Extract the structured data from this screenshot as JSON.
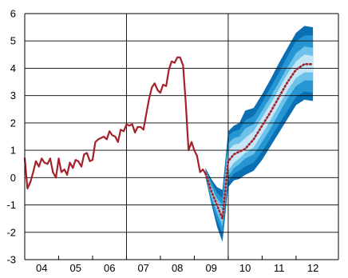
{
  "chart_data": {
    "type": "line",
    "title": "",
    "xlabel": "",
    "ylabel": "",
    "ylim": [
      -3,
      6
    ],
    "yticks": [
      -3,
      -2,
      -1,
      0,
      1,
      2,
      3,
      4,
      5,
      6
    ],
    "ytick_labels": [
      "-3",
      "-2",
      "-1",
      "0",
      "1",
      "2",
      "3",
      "4",
      "5",
      "6"
    ],
    "xlim": [
      2003.5,
      2012.75
    ],
    "xtick_labels": [
      "04",
      "05",
      "06",
      "07",
      "08",
      "09",
      "10",
      "11",
      "12"
    ],
    "xtick_positions": [
      2004,
      2005,
      2006,
      2007,
      2008,
      2009,
      2010,
      2011,
      2012
    ],
    "vertical_lines": [
      2006.5,
      2009.5
    ],
    "grid": "horizontal",
    "colors": {
      "history": "#a3212a",
      "projection": "#a3212a",
      "fan_bands": [
        "#0b6fb4",
        "#2596d2",
        "#6cc2ea",
        "#c4e6f6"
      ]
    },
    "series": [
      {
        "kind": "history",
        "x": [
          2003.5,
          2003.58,
          2003.67,
          2003.75,
          2003.83,
          2003.92,
          2004.0,
          2004.08,
          2004.17,
          2004.25,
          2004.33,
          2004.42,
          2004.5,
          2004.58,
          2004.67,
          2004.75,
          2004.83,
          2004.92,
          2005.0,
          2005.08,
          2005.17,
          2005.25,
          2005.33,
          2005.42,
          2005.5,
          2005.58,
          2005.67,
          2005.75,
          2005.83,
          2005.92,
          2006.0,
          2006.08,
          2006.17,
          2006.25,
          2006.33,
          2006.42,
          2006.5,
          2006.58,
          2006.67,
          2006.75,
          2006.83,
          2006.92,
          2007.0,
          2007.08,
          2007.17,
          2007.25,
          2007.33,
          2007.42,
          2007.5,
          2007.58,
          2007.67,
          2007.75,
          2007.83,
          2007.92,
          2008.0,
          2008.08,
          2008.17,
          2008.25,
          2008.33,
          2008.42,
          2008.5,
          2008.58,
          2008.67,
          2008.75,
          2008.83
        ],
        "y": [
          0.7,
          -0.4,
          -0.15,
          0.2,
          0.6,
          0.4,
          0.7,
          0.55,
          0.5,
          0.7,
          0.2,
          0.0,
          0.7,
          0.2,
          0.3,
          0.1,
          0.55,
          0.35,
          0.65,
          0.6,
          0.4,
          0.85,
          0.9,
          0.6,
          0.65,
          1.3,
          1.4,
          1.45,
          1.5,
          1.4,
          1.7,
          1.55,
          1.5,
          1.3,
          1.75,
          1.7,
          1.95,
          1.9,
          1.95,
          1.65,
          1.85,
          1.85,
          1.75,
          2.3,
          2.9,
          3.3,
          3.45,
          3.2,
          3.1,
          3.4,
          3.35,
          3.95,
          4.25,
          4.2,
          4.4,
          4.4,
          4.1,
          2.7,
          1.0,
          1.3,
          1.0,
          0.8,
          0.2,
          0.3,
          0.15
        ]
      },
      {
        "kind": "projection",
        "x": [
          2008.83,
          2009.0,
          2009.17,
          2009.33,
          2009.5,
          2009.67,
          2009.83,
          2010.0,
          2010.25,
          2010.5,
          2010.75,
          2011.0,
          2011.25,
          2011.5,
          2011.75,
          2012.0
        ],
        "y": [
          0.15,
          -0.5,
          -1.0,
          -1.5,
          0.6,
          0.85,
          0.95,
          1.05,
          1.4,
          1.9,
          2.4,
          2.95,
          3.5,
          3.95,
          4.15,
          4.15
        ]
      }
    ],
    "fan": {
      "x": [
        2008.83,
        2009.0,
        2009.17,
        2009.33,
        2009.5,
        2009.67,
        2009.83,
        2010.0,
        2010.25,
        2010.5,
        2010.75,
        2011.0,
        2011.25,
        2011.5,
        2011.75,
        2012.0
      ],
      "bands": [
        {
          "upper": [
            0.35,
            -0.05,
            -0.35,
            -0.45,
            1.7,
            1.9,
            2.0,
            2.45,
            2.55,
            3.05,
            3.6,
            4.2,
            4.75,
            5.3,
            5.55,
            5.5
          ],
          "lower": [
            0.0,
            -0.95,
            -1.8,
            -2.35,
            -0.35,
            -0.1,
            -0.05,
            0.1,
            0.25,
            0.65,
            1.15,
            1.65,
            2.15,
            2.65,
            2.85,
            2.8
          ]
        },
        {
          "upper": [
            0.3,
            -0.15,
            -0.55,
            -0.75,
            1.55,
            1.7,
            1.75,
            2.1,
            2.25,
            2.75,
            3.3,
            3.85,
            4.45,
            5.0,
            5.2,
            5.2
          ],
          "lower": [
            0.05,
            -0.85,
            -1.55,
            -2.05,
            -0.15,
            0.15,
            0.25,
            0.4,
            0.55,
            0.95,
            1.45,
            1.95,
            2.45,
            2.95,
            3.15,
            3.1
          ]
        },
        {
          "upper": [
            0.25,
            -0.3,
            -0.75,
            -1.0,
            1.25,
            1.45,
            1.5,
            1.8,
            1.95,
            2.45,
            2.95,
            3.5,
            4.05,
            4.55,
            4.8,
            4.75
          ],
          "lower": [
            0.1,
            -0.7,
            -1.3,
            -1.8,
            0.05,
            0.35,
            0.5,
            0.7,
            0.85,
            1.3,
            1.8,
            2.35,
            2.9,
            3.35,
            3.55,
            3.55
          ]
        },
        {
          "upper": [
            0.2,
            -0.4,
            -0.88,
            -1.25,
            1.0,
            1.2,
            1.25,
            1.45,
            1.7,
            2.2,
            2.7,
            3.25,
            3.8,
            4.25,
            4.5,
            4.45
          ],
          "lower": [
            0.12,
            -0.6,
            -1.12,
            -1.6,
            0.25,
            0.55,
            0.7,
            0.9,
            1.1,
            1.6,
            2.1,
            2.65,
            3.2,
            3.65,
            3.85,
            3.85
          ]
        }
      ]
    }
  }
}
